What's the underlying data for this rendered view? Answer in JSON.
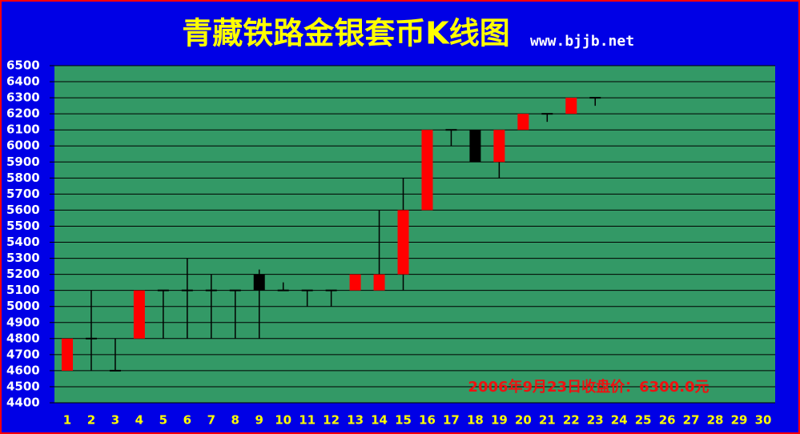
{
  "chart_data": {
    "type": "candlestick",
    "title": "青藏铁路金银套币K线图",
    "subtitle": "www.bjjb.net",
    "annotation": "2006年9月23日收盘价：6300.0元",
    "categories": [
      "1",
      "2",
      "3",
      "4",
      "5",
      "6",
      "7",
      "8",
      "9",
      "10",
      "11",
      "12",
      "13",
      "14",
      "15",
      "16",
      "17",
      "18",
      "19",
      "20",
      "21",
      "22",
      "23",
      "24",
      "25",
      "26",
      "27",
      "28",
      "29",
      "30"
    ],
    "open": [
      4600,
      4800,
      4600,
      4800,
      5100,
      5100,
      5100,
      5100,
      5200,
      5100,
      5100,
      5100,
      5100,
      5100,
      5200,
      5600,
      6100,
      6100,
      5900,
      6100,
      6200,
      6200,
      6300,
      null,
      null,
      null,
      null,
      null,
      null,
      null
    ],
    "high": [
      4800,
      5100,
      4800,
      5100,
      5100,
      5300,
      5200,
      5100,
      5230,
      5150,
      5100,
      5100,
      5200,
      5600,
      5800,
      6100,
      6100,
      6100,
      6100,
      6200,
      6200,
      6300,
      6300,
      null,
      null,
      null,
      null,
      null,
      null,
      null
    ],
    "low": [
      4600,
      4600,
      4600,
      4800,
      4800,
      4800,
      4800,
      4800,
      4800,
      5100,
      5000,
      5000,
      5100,
      5100,
      5100,
      5600,
      6000,
      5900,
      5800,
      6100,
      6150,
      6200,
      6250,
      null,
      null,
      null,
      null,
      null,
      null,
      null
    ],
    "close": [
      4800,
      4800,
      4600,
      5100,
      5100,
      5100,
      5100,
      5100,
      5100,
      5100,
      5100,
      5100,
      5200,
      5200,
      5600,
      6100,
      6100,
      5900,
      6100,
      6200,
      6200,
      6300,
      6300,
      null,
      null,
      null,
      null,
      null,
      null,
      null
    ],
    "up_color": "#ff0000",
    "down_color": "#000000",
    "ylim": [
      4400,
      6500
    ],
    "yticks": [
      4400,
      4500,
      4600,
      4700,
      4800,
      4900,
      5000,
      5100,
      5200,
      5300,
      5400,
      5500,
      5600,
      5700,
      5800,
      5900,
      6000,
      6100,
      6200,
      6300,
      6400,
      6500
    ],
    "grid": true
  }
}
